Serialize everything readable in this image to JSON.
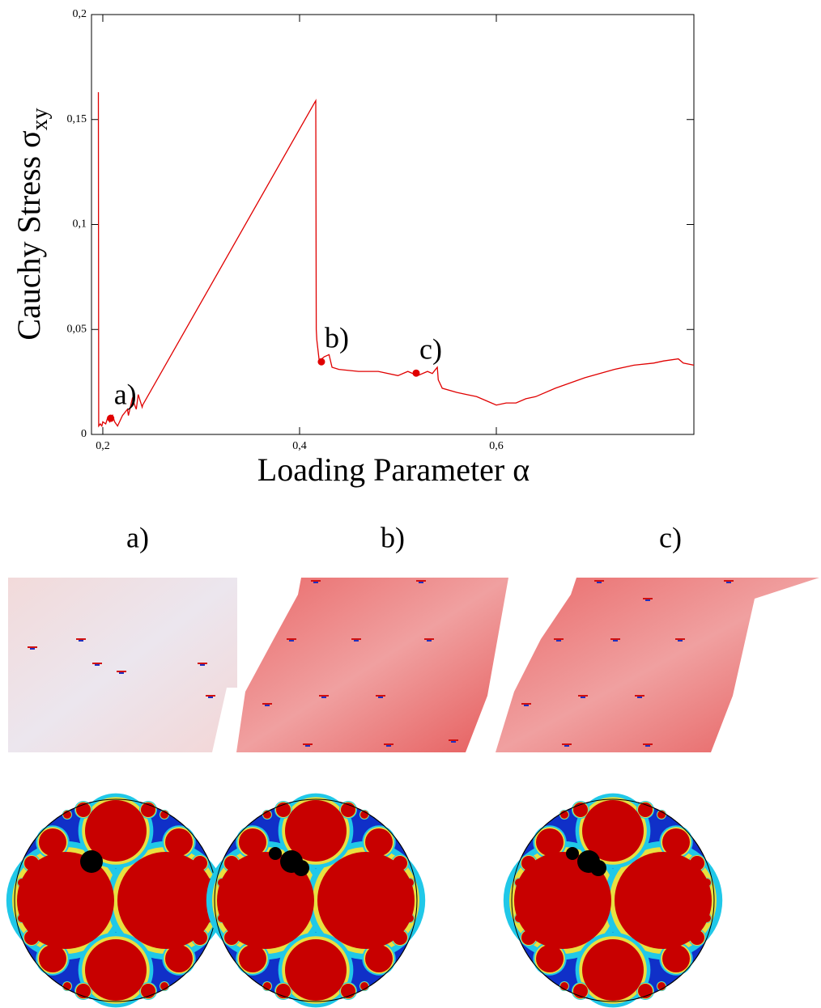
{
  "chart_data": {
    "type": "line",
    "y_label": {
      "text": "Cauchy Stress  σ",
      "subscript": "xy"
    },
    "x_label": "Loading Parameter  α",
    "xlim": [
      0.1885,
      0.8008
    ],
    "ylim": [
      0,
      0.2
    ],
    "xticks": [
      {
        "value": 0.2,
        "label": "0,2"
      },
      {
        "value": 0.4,
        "label": "0,4"
      },
      {
        "value": 0.6,
        "label": "0,6"
      }
    ],
    "yticks": [
      0,
      {
        "value": 0.05,
        "label": "0,05"
      },
      {
        "value": 0.1,
        "label": "0,1"
      },
      {
        "value": 0.15,
        "label": "0,15"
      },
      {
        "value": 0.2,
        "label": "0,2"
      }
    ],
    "x": [
      0.1955,
      0.1958,
      0.1975,
      0.199,
      0.2,
      0.203,
      0.205,
      0.207,
      0.21,
      0.212,
      0.215,
      0.22,
      0.225,
      0.226,
      0.23,
      0.234,
      0.236,
      0.24,
      0.2405,
      0.4165,
      0.417,
      0.4175,
      0.42,
      0.425,
      0.43,
      0.433,
      0.44,
      0.46,
      0.48,
      0.5,
      0.51,
      0.52,
      0.53,
      0.535,
      0.54,
      0.541,
      0.545,
      0.56,
      0.57,
      0.58,
      0.59,
      0.6,
      0.61,
      0.62,
      0.63,
      0.64,
      0.66,
      0.69,
      0.72,
      0.74,
      0.76,
      0.77,
      0.785,
      0.79,
      0.8008
    ],
    "series": [
      {
        "name": "stress",
        "color": "#e00000",
        "values": [
          0.163,
          0.004,
          0.005,
          0.004,
          0.006,
          0.005,
          0.008,
          0.006,
          0.009,
          0.006,
          0.004,
          0.009,
          0.012,
          0.009,
          0.017,
          0.012,
          0.019,
          0.013,
          0.014,
          0.159,
          0.05,
          0.045,
          0.035,
          0.037,
          0.038,
          0.032,
          0.031,
          0.03,
          0.03,
          0.028,
          0.03,
          0.028,
          0.03,
          0.029,
          0.032,
          0.026,
          0.022,
          0.02,
          0.019,
          0.018,
          0.016,
          0.014,
          0.015,
          0.015,
          0.017,
          0.018,
          0.022,
          0.027,
          0.031,
          0.033,
          0.034,
          0.035,
          0.036,
          0.034,
          0.033
        ]
      }
    ],
    "markers": {
      "color": "#e00000",
      "x": [
        0.208,
        0.4222,
        0.5185
      ],
      "values": [
        0.0077,
        0.0346,
        0.0292
      ],
      "labels": [
        "a)",
        "b)",
        "c)"
      ]
    },
    "panels": [
      "a)",
      "b)",
      "c)"
    ]
  }
}
